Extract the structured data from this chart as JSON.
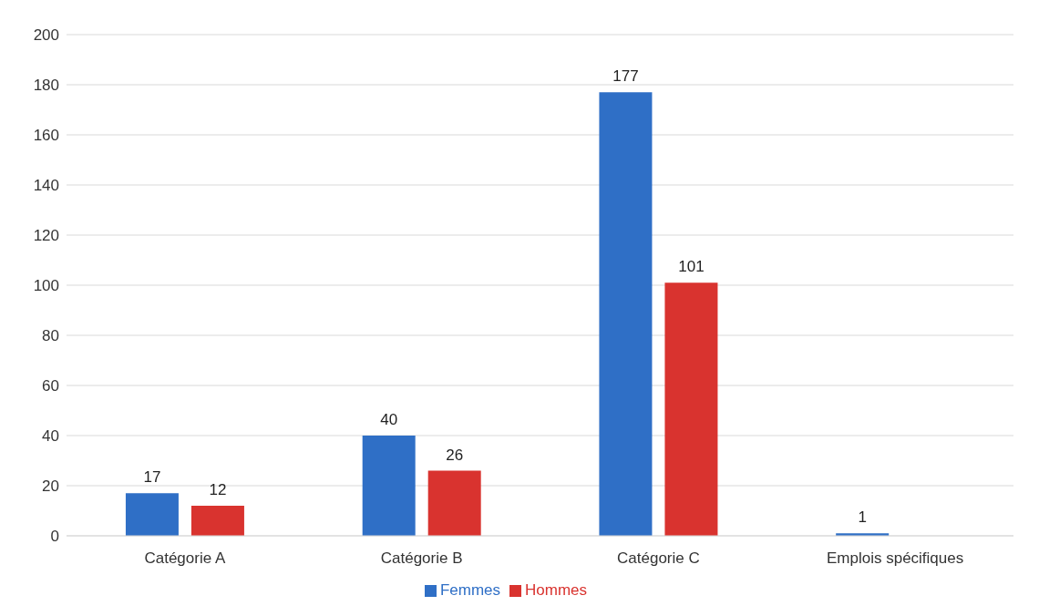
{
  "chart_data": {
    "type": "bar",
    "categories": [
      "Catégorie A",
      "Catégorie B",
      "Catégorie C",
      "Emplois spécifiques"
    ],
    "series": [
      {
        "name": "Femmes",
        "color": "#2f6fc6",
        "values": [
          17,
          40,
          177,
          1
        ],
        "value_labels": [
          "17",
          "40",
          "177",
          "1"
        ]
      },
      {
        "name": "Hommes",
        "color": "#d9332f",
        "values": [
          12,
          26,
          101,
          0
        ],
        "value_labels": [
          "12",
          "26",
          "101",
          null
        ]
      }
    ],
    "ylim": [
      0,
      200
    ],
    "yticks": [
      0,
      20,
      40,
      60,
      80,
      100,
      120,
      140,
      160,
      180,
      200
    ],
    "grid": "y",
    "legend": "bottom"
  }
}
